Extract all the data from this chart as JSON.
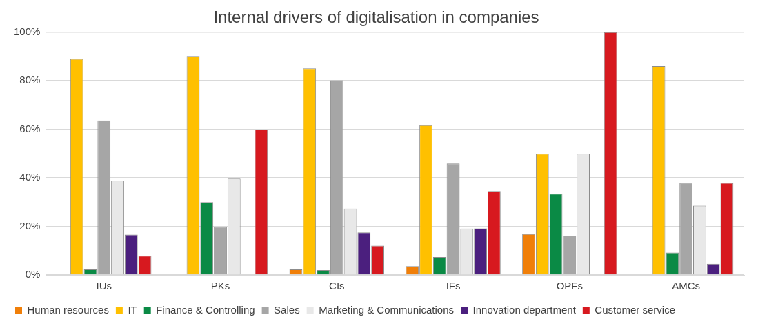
{
  "chart_data": {
    "type": "bar",
    "title": "Internal drivers of digitalisation in companies",
    "categories": [
      "IUs",
      "PKs",
      "CIs",
      "IFs",
      "OPFs",
      "AMCs"
    ],
    "series": [
      {
        "name": "Human resources",
        "color": "#f07f09",
        "values": [
          0,
          0,
          2.3,
          3.6,
          16.8,
          0
        ]
      },
      {
        "name": "IT",
        "color": "#ffc000",
        "values": [
          89,
          90.2,
          85.1,
          61.7,
          49.9,
          86
        ]
      },
      {
        "name": "Finance & Controlling",
        "color": "#0a8a45",
        "values": [
          2.3,
          30,
          2,
          7.4,
          33.4,
          9.2
        ]
      },
      {
        "name": "Sales",
        "color": "#a6a6a6",
        "values": [
          63.7,
          19.8,
          80.2,
          45.9,
          16.2,
          37.9
        ]
      },
      {
        "name": "Marketing & Communications",
        "color": "#e8e8e8",
        "values": [
          38.8,
          39.7,
          27.3,
          19.1,
          49.9,
          28.5
        ]
      },
      {
        "name": "Innovation department",
        "color": "#4b1f7e",
        "values": [
          16.6,
          0,
          17.5,
          19.2,
          0,
          4.6
        ]
      },
      {
        "name": "Customer service",
        "color": "#d7191f",
        "values": [
          7.9,
          59.9,
          12.1,
          34.6,
          100,
          37.9
        ]
      }
    ],
    "ylim": [
      0,
      100
    ],
    "yticks": [
      {
        "value": 0,
        "label": "0%"
      },
      {
        "value": 20,
        "label": "20%"
      },
      {
        "value": 40,
        "label": "40%"
      },
      {
        "value": 60,
        "label": "60%"
      },
      {
        "value": 80,
        "label": "80%"
      },
      {
        "value": 100,
        "label": "100%"
      }
    ],
    "grid": "y",
    "legend": "bottom"
  }
}
